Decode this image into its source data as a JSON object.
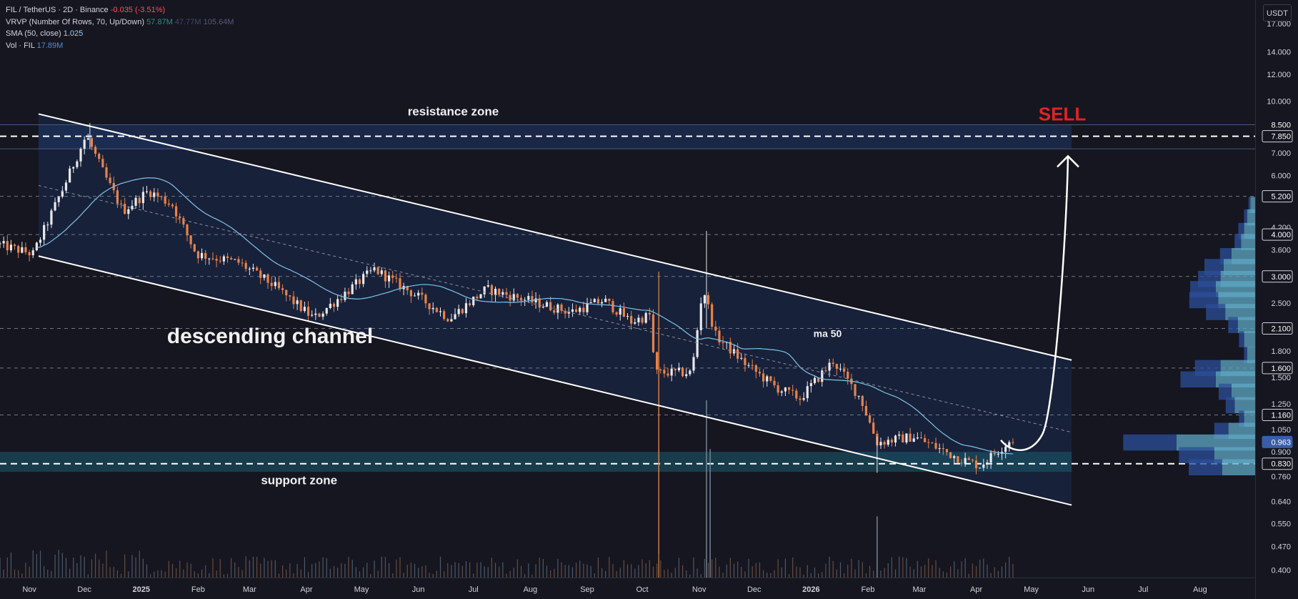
{
  "legend": {
    "symbol": "FIL / TetherUS · 2D · Binance",
    "change": "-0.035 (-3.51%)",
    "vrvp_label": "VRVP (Number Of Rows, 70, Up/Down)",
    "vrvp_v1": "57.87M",
    "vrvp_v2": "47.77M",
    "vrvp_v3": "105.64M",
    "sma_label": "SMA (50, close)",
    "sma_value": "1.025",
    "vol_label": "Vol · FIL",
    "vol_value": "17.89M"
  },
  "unit_button": "USDT",
  "colors": {
    "background": "#161620",
    "bull": "#e8e8ec",
    "bear": "#e8834a",
    "channel_fill": "#1b2b50",
    "support_fill": "#1b5c6e",
    "sma": "#7fc4e8",
    "sell": "#e02424",
    "price_tag": "#3a5da8",
    "vrvp_up": "#5fa8c4",
    "vrvp_down": "#2c4f9a"
  },
  "chart_data": {
    "type": "candlestick",
    "y_scale": "log",
    "ylim": [
      0.38,
      20.0
    ],
    "x_range": [
      "2024-10-16",
      "2026-08-31"
    ],
    "x_ticks": [
      {
        "date": "2024-11-01",
        "label": "Nov"
      },
      {
        "date": "2024-12-01",
        "label": "Dec"
      },
      {
        "date": "2025-01-01",
        "label": "2025"
      },
      {
        "date": "2025-02-01",
        "label": "Feb"
      },
      {
        "date": "2025-03-01",
        "label": "Mar"
      },
      {
        "date": "2025-04-01",
        "label": "Apr"
      },
      {
        "date": "2025-05-01",
        "label": "May"
      },
      {
        "date": "2025-06-01",
        "label": "Jun"
      },
      {
        "date": "2025-07-01",
        "label": "Jul"
      },
      {
        "date": "2025-08-01",
        "label": "Aug"
      },
      {
        "date": "2025-09-01",
        "label": "Sep"
      },
      {
        "date": "2025-10-01",
        "label": "Oct"
      },
      {
        "date": "2025-11-01",
        "label": "Nov"
      },
      {
        "date": "2025-12-01",
        "label": "Dec"
      },
      {
        "date": "2026-01-01",
        "label": "2026"
      },
      {
        "date": "2026-02-01",
        "label": "Feb"
      },
      {
        "date": "2026-03-01",
        "label": "Mar"
      },
      {
        "date": "2026-04-01",
        "label": "Apr"
      },
      {
        "date": "2026-05-01",
        "label": "May"
      },
      {
        "date": "2026-06-01",
        "label": "Jun"
      },
      {
        "date": "2026-07-01",
        "label": "Jul"
      },
      {
        "date": "2026-08-01",
        "label": "Aug"
      }
    ],
    "y_ticks": [
      "17.000",
      "14.000",
      "12.000",
      "10.000",
      "7.000",
      "6.000",
      "4.200",
      "3.600",
      "2.500",
      "1.800",
      "1.500",
      "1.250",
      "1.050",
      "0.900",
      "0.760",
      "0.640",
      "0.550",
      "0.470",
      "0.400"
    ],
    "y_tags": [
      {
        "value": 8.5,
        "label": "8.500",
        "style": "plain"
      },
      {
        "value": 7.85,
        "label": "7.850",
        "style": "outlined"
      },
      {
        "value": 5.2,
        "label": "5.200",
        "style": "outlined"
      },
      {
        "value": 4.0,
        "label": "4.000",
        "style": "outlined"
      },
      {
        "value": 3.0,
        "label": "3.000",
        "style": "outlined"
      },
      {
        "value": 2.1,
        "label": "2.100",
        "style": "outlined"
      },
      {
        "value": 1.6,
        "label": "1.600",
        "style": "outlined"
      },
      {
        "value": 1.16,
        "label": "1.160",
        "style": "outlined"
      },
      {
        "value": 0.963,
        "label": "0.963",
        "style": "price"
      },
      {
        "value": 0.83,
        "label": "0.830",
        "style": "outlined"
      }
    ],
    "horizontal_levels": [
      7.85,
      5.2,
      4.0,
      3.0,
      2.1,
      1.6,
      1.16,
      0.83
    ],
    "resistance_zone": [
      7.2,
      8.5
    ],
    "support_zone": [
      0.785,
      0.9
    ],
    "channel": {
      "upper": [
        [
          "2024-11-06",
          9.15
        ],
        [
          "2026-05-23",
          1.69
        ]
      ],
      "lower": [
        [
          "2024-11-06",
          3.45
        ],
        [
          "2026-05-23",
          0.625
        ]
      ],
      "midline": [
        [
          "2024-11-06",
          5.6
        ],
        [
          "2026-05-23",
          1.03
        ]
      ]
    },
    "projection": {
      "from": [
        "2026-04-23",
        0.92
      ],
      "to": [
        "2026-05-21",
        6.85
      ],
      "label": "SELL"
    },
    "annotations": [
      {
        "text": "resistance zone",
        "date": "2025-06-20",
        "value": 9.05
      },
      {
        "text": "descending channel",
        "date": "2025-01-15",
        "value": 1.9
      },
      {
        "text": "support zone",
        "date": "2025-03-28",
        "value": 0.72
      },
      {
        "text": "ma 50",
        "date": "2026-01-10",
        "value": 1.98
      }
    ],
    "anchors": [
      [
        "2024-10-16",
        3.75
      ],
      [
        "2024-11-05",
        3.5
      ],
      [
        "2024-11-22",
        5.6
      ],
      [
        "2024-12-04",
        7.9
      ],
      [
        "2024-12-14",
        6.0
      ],
      [
        "2024-12-24",
        4.7
      ],
      [
        "2025-01-07",
        5.4
      ],
      [
        "2025-01-20",
        4.9
      ],
      [
        "2025-02-02",
        3.5
      ],
      [
        "2025-02-25",
        3.3
      ],
      [
        "2025-03-15",
        2.85
      ],
      [
        "2025-04-07",
        2.25
      ],
      [
        "2025-05-10",
        3.15
      ],
      [
        "2025-06-01",
        2.65
      ],
      [
        "2025-06-20",
        2.25
      ],
      [
        "2025-07-10",
        2.75
      ],
      [
        "2025-08-01",
        2.55
      ],
      [
        "2025-08-25",
        2.35
      ],
      [
        "2025-09-12",
        2.55
      ],
      [
        "2025-09-27",
        2.2
      ],
      [
        "2025-10-07",
        2.3
      ],
      [
        "2025-10-10",
        1.55
      ],
      [
        "2025-10-30",
        1.55
      ],
      [
        "2025-11-05",
        2.8
      ],
      [
        "2025-11-12",
        2.0
      ],
      [
        "2025-11-28",
        1.65
      ],
      [
        "2025-12-15",
        1.4
      ],
      [
        "2025-12-28",
        1.3
      ],
      [
        "2026-01-15",
        1.68
      ],
      [
        "2026-01-30",
        1.3
      ],
      [
        "2026-02-08",
        0.96
      ],
      [
        "2026-02-28",
        1.0
      ],
      [
        "2026-03-25",
        0.86
      ],
      [
        "2026-04-05",
        0.82
      ],
      [
        "2026-04-22",
        0.98
      ]
    ],
    "volume_spikes": [
      [
        "2025-10-10",
        1.0
      ],
      [
        "2025-11-05",
        0.58
      ],
      [
        "2025-11-07",
        0.42
      ],
      [
        "2026-02-06",
        0.2
      ]
    ],
    "sma_50": {
      "name": "SMA (50, close)",
      "last": 1.025
    },
    "vrvp": [
      {
        "price": 4.9,
        "up": 0.06,
        "down": 0.03
      },
      {
        "price": 4.5,
        "up": 0.1,
        "down": 0.05
      },
      {
        "price": 4.1,
        "up": 0.14,
        "down": 0.09
      },
      {
        "price": 3.8,
        "up": 0.18,
        "down": 0.1
      },
      {
        "price": 3.45,
        "up": 0.3,
        "down": 0.18
      },
      {
        "price": 3.2,
        "up": 0.4,
        "down": 0.3
      },
      {
        "price": 2.95,
        "up": 0.44,
        "down": 0.35
      },
      {
        "price": 2.75,
        "up": 0.5,
        "down": 0.4
      },
      {
        "price": 2.55,
        "up": 0.47,
        "down": 0.45
      },
      {
        "price": 2.35,
        "up": 0.38,
        "down": 0.3
      },
      {
        "price": 2.15,
        "up": 0.22,
        "down": 0.15
      },
      {
        "price": 1.95,
        "up": 0.14,
        "down": 0.08
      },
      {
        "price": 1.75,
        "up": 0.1,
        "down": 0.05
      },
      {
        "price": 1.6,
        "up": 0.44,
        "down": 0.4
      },
      {
        "price": 1.48,
        "up": 0.5,
        "down": 0.55
      },
      {
        "price": 1.36,
        "up": 0.3,
        "down": 0.2
      },
      {
        "price": 1.24,
        "up": 0.26,
        "down": 0.14
      },
      {
        "price": 1.13,
        "up": 0.14,
        "down": 0.08
      },
      {
        "price": 1.04,
        "up": 0.34,
        "down": 0.22
      },
      {
        "price": 0.96,
        "up": 1.0,
        "down": 0.83
      },
      {
        "price": 0.88,
        "up": 0.52,
        "down": 0.55
      },
      {
        "price": 0.81,
        "up": 0.42,
        "down": 0.52
      }
    ]
  }
}
